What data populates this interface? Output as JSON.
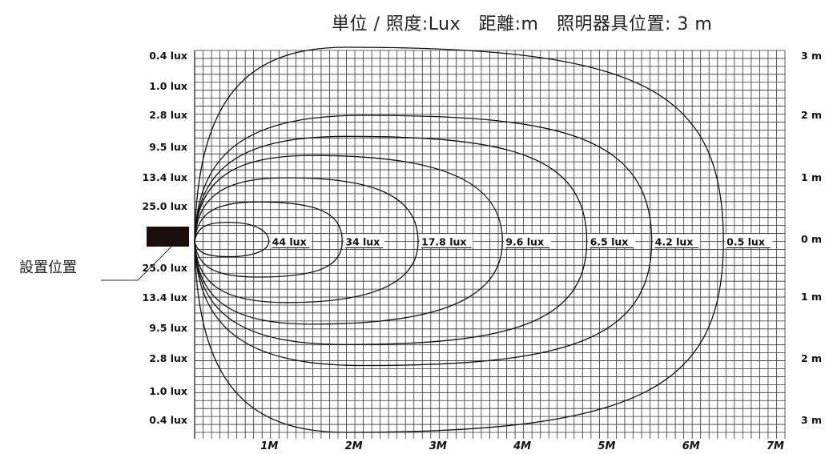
{
  "page": {
    "title": "単位 / 照度:Lux　距離:m　照明器具位置: 3 m"
  },
  "chart_data": {
    "type": "contour",
    "title": "単位 / 照度:Lux　距離:m　照明器具位置: 3 m",
    "x_ticks": [
      "1M",
      "2M",
      "3M",
      "4M",
      "5M",
      "6M",
      "7M"
    ],
    "x_range": [
      0,
      7
    ],
    "y_range": [
      -3,
      3
    ],
    "left_labels": [
      "0.4 lux",
      "1.0 lux",
      "2.8 lux",
      "9.5 lux",
      "13.4 lux",
      "25.0 lux",
      "25.0 lux",
      "13.4 lux",
      "9.5 lux",
      "2.8 lux",
      "1.0 lux",
      "0.4 lux"
    ],
    "right_labels": [
      {
        "text": "3 m",
        "y": 3
      },
      {
        "text": "2 m",
        "y": 2
      },
      {
        "text": "1 m",
        "y": 1
      },
      {
        "text": "0 m",
        "y": 0
      },
      {
        "text": "1 m",
        "y": -1
      },
      {
        "text": "2 m",
        "y": -2
      },
      {
        "text": "3 m",
        "y": -3
      }
    ],
    "installation_label": "設置位置",
    "grid": true,
    "contours": [
      {
        "name": "44 lux",
        "reach_x": 0.88,
        "top": [
          [
            0.4,
            0.3
          ],
          [
            0.7,
            0.17
          ]
        ],
        "bottom": [
          [
            0.4,
            -0.24
          ],
          [
            0.7,
            -0.14
          ]
        ]
      },
      {
        "name": "34 lux",
        "reach_x": 1.75,
        "top": [
          [
            0.75,
            0.62
          ],
          [
            1.45,
            0.45
          ]
        ],
        "bottom": [
          [
            0.75,
            -0.56
          ],
          [
            1.45,
            -0.4
          ]
        ]
      },
      {
        "name": "17.8 lux",
        "reach_x": 2.65,
        "top": [
          [
            1.1,
            1.0
          ],
          [
            2.1,
            0.72
          ]
        ],
        "bottom": [
          [
            1.1,
            -0.96
          ],
          [
            2.1,
            -0.66
          ]
        ]
      },
      {
        "name": "9.6 lux",
        "reach_x": 3.65,
        "top": [
          [
            1.4,
            1.35
          ],
          [
            2.8,
            1.0
          ]
        ],
        "bottom": [
          [
            1.4,
            -1.3
          ],
          [
            2.8,
            -0.95
          ]
        ]
      },
      {
        "name": "6.5 lux",
        "reach_x": 4.65,
        "top": [
          [
            1.8,
            1.65
          ],
          [
            3.7,
            1.35
          ]
        ],
        "bottom": [
          [
            1.8,
            -1.62
          ],
          [
            3.7,
            -1.3
          ]
        ]
      },
      {
        "name": "4.2 lux",
        "reach_x": 5.42,
        "top": [
          [
            2.0,
            1.98
          ],
          [
            4.3,
            1.65
          ]
        ],
        "bottom": [
          [
            2.0,
            -1.95
          ],
          [
            4.3,
            -1.6
          ]
        ]
      },
      {
        "name": "0.5 lux",
        "reach_x": 6.27,
        "top": [
          [
            1.8,
            3.05
          ],
          [
            5.3,
            2.35
          ]
        ],
        "bottom": [
          [
            1.8,
            -3.0
          ],
          [
            5.3,
            -2.3
          ]
        ]
      }
    ]
  }
}
